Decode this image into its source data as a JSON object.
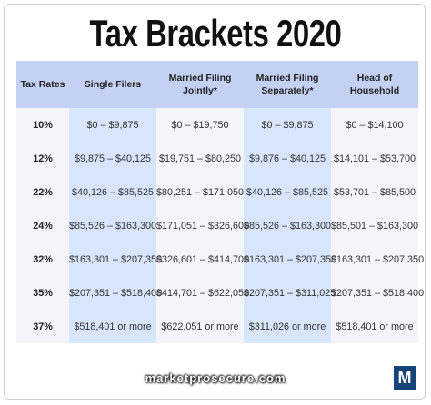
{
  "title": "Tax Brackets 2020",
  "headers": [
    "Tax Rates",
    "Single Filers",
    "Married Filing Jointly*",
    "Married Filing Separately*",
    "Head of Household"
  ],
  "rows": [
    [
      "10%",
      "$0 – $9,875",
      "$0 – $19,750",
      "$0 – $9,875",
      "$0 – $14,100"
    ],
    [
      "12%",
      "$9,875 – $40,125",
      "$19,751 – $80,250",
      "$9,876 – $40,125",
      "$14,101 – $53,700"
    ],
    [
      "22%",
      "$40,126 – $85,525",
      "$80,251 – $171,050",
      "$40,126 – $85,525",
      "$53,701 – $85,500"
    ],
    [
      "24%",
      "$85,526 – $163,300",
      "$171,051 – $326,600",
      "$85,526 – $163,300",
      "$85,501 – $163,300"
    ],
    [
      "32%",
      "$163,301 – $207,350",
      "$326,601 – $414,700",
      "$163,301 – $207,350",
      "$163,301 – $207,350"
    ],
    [
      "35%",
      "$207,351 – $518,400",
      "$414,701 – $622,050",
      "$207,351 – $311,025",
      "$207,351 – $518,400"
    ],
    [
      "37%",
      "$518,401 or more",
      "$622,051 or more",
      "$311,026 or more",
      "$518,401 or more"
    ]
  ],
  "footer": {
    "site": "marketprosecure.com",
    "logo_letter": "M"
  },
  "colors": {
    "header_bg": "#c3d1f4",
    "highlight_col": "#d8e6fb",
    "plain_col": "#f3f5fb",
    "logo_bg": "#16457a"
  }
}
